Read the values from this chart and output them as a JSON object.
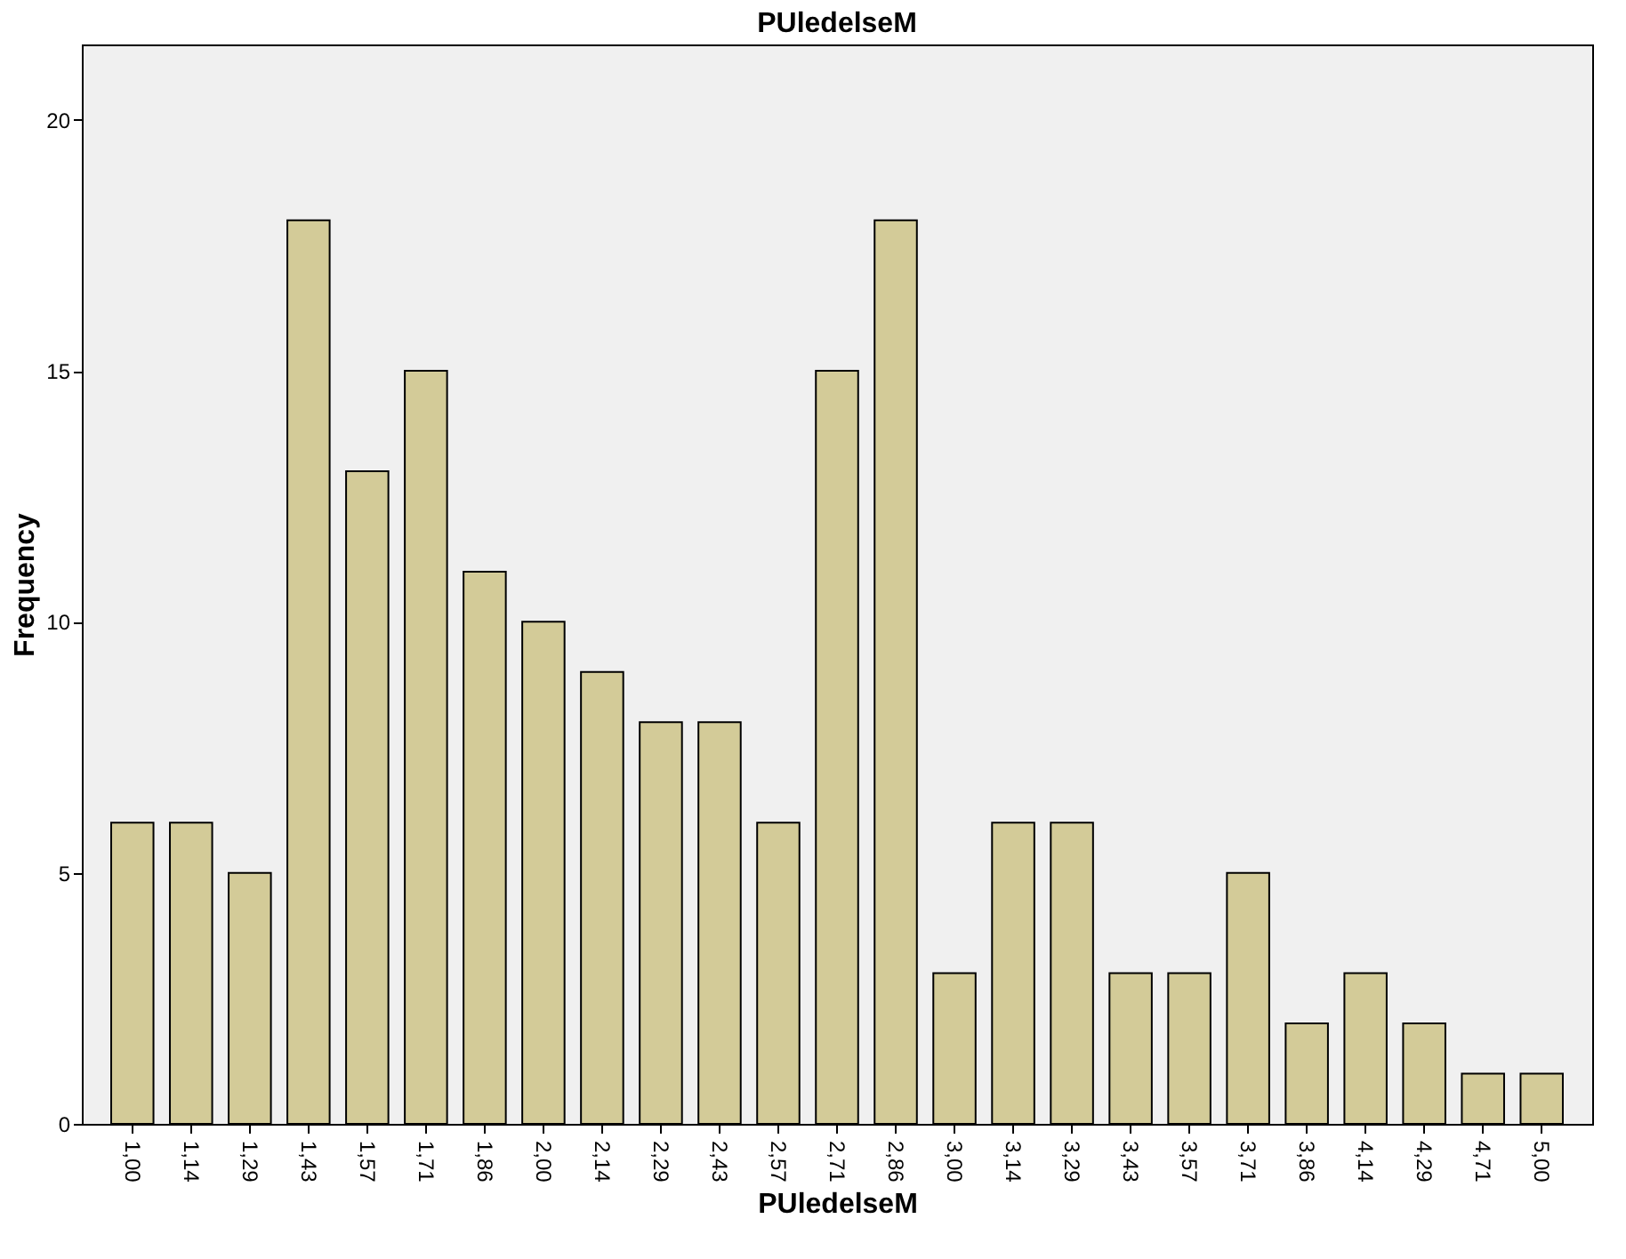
{
  "chart_data": {
    "type": "bar",
    "title": "PUledelseM",
    "xlabel": "PUledelseM",
    "ylabel": "Frequency",
    "categories": [
      "1,00",
      "1,14",
      "1,29",
      "1,43",
      "1,57",
      "1,71",
      "1,86",
      "2,00",
      "2,14",
      "2,29",
      "2,43",
      "2,57",
      "2,71",
      "2,86",
      "3,00",
      "3,14",
      "3,29",
      "3,43",
      "3,57",
      "3,71",
      "3,86",
      "4,14",
      "4,29",
      "4,71",
      "5,00"
    ],
    "values": [
      6,
      6,
      5,
      18,
      13,
      15,
      11,
      10,
      9,
      8,
      8,
      6,
      15,
      18,
      3,
      6,
      6,
      3,
      3,
      5,
      2,
      3,
      2,
      1,
      1
    ],
    "color": "#d3cb98",
    "ylim": [
      0,
      21.5
    ],
    "yticks": [
      0,
      5,
      10,
      15,
      20
    ],
    "grid": false
  }
}
